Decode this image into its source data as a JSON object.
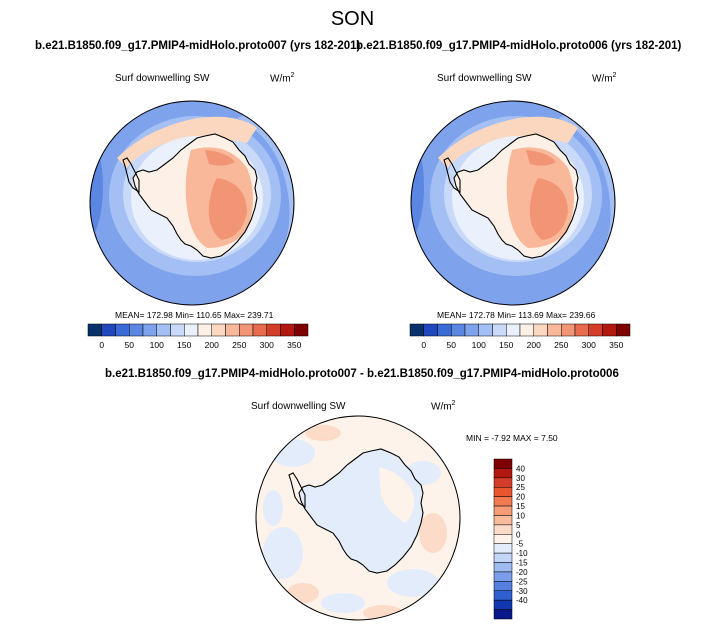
{
  "page": {
    "title": "SON"
  },
  "chart_data": [
    {
      "type": "heatmap",
      "title": "b.e21.B1850.f09_g17.PMIP4-midHolo.proto007 (yrs 182-201)",
      "variable": "Surf downwelling SW",
      "units_base": "W/m",
      "units_exp": "2",
      "projection": "south polar stereographic",
      "stats": {
        "mean": 172.98,
        "min": 110.65,
        "max": 239.71
      },
      "stats_text": "MEAN= 172.98   Min= 110.65   Max= 239.71",
      "colorbar": {
        "levels": [
          0,
          25,
          50,
          75,
          100,
          125,
          150,
          175,
          200,
          225,
          250,
          275,
          300,
          325,
          350
        ],
        "labels": [
          "0",
          "50",
          "100",
          "150",
          "200",
          "250",
          "300",
          "350"
        ],
        "colors": [
          "#08306b",
          "#1f48bf",
          "#3a6ad6",
          "#5b87e3",
          "#7ea2ec",
          "#a3bff3",
          "#c9d9f8",
          "#eaf1fc",
          "#fdf0e6",
          "#fcd7c0",
          "#f8b899",
          "#f29575",
          "#e76b4c",
          "#d43d29",
          "#b3180f",
          "#7f0000"
        ]
      }
    },
    {
      "type": "heatmap",
      "title": "b.e21.B1850.f09_g17.PMIP4-midHolo.proto006 (yrs 182-201)",
      "variable": "Surf downwelling SW",
      "units_base": "W/m",
      "units_exp": "2",
      "projection": "south polar stereographic",
      "stats": {
        "mean": 172.78,
        "min": 113.69,
        "max": 239.66
      },
      "stats_text": "MEAN= 172.78   Min= 113.69   Max= 239.66",
      "colorbar": {
        "levels": [
          0,
          25,
          50,
          75,
          100,
          125,
          150,
          175,
          200,
          225,
          250,
          275,
          300,
          325,
          350
        ],
        "labels": [
          "0",
          "50",
          "100",
          "150",
          "200",
          "250",
          "300",
          "350"
        ],
        "colors": [
          "#08306b",
          "#1f48bf",
          "#3a6ad6",
          "#5b87e3",
          "#7ea2ec",
          "#a3bff3",
          "#c9d9f8",
          "#eaf1fc",
          "#fdf0e6",
          "#fcd7c0",
          "#f8b899",
          "#f29575",
          "#e76b4c",
          "#d43d29",
          "#b3180f",
          "#7f0000"
        ]
      }
    },
    {
      "type": "heatmap",
      "title": "b.e21.B1850.f09_g17.PMIP4-midHolo.proto007 - b.e21.B1850.f09_g17.PMIP4-midHolo.proto006",
      "variable": "Surf downwelling SW",
      "units_base": "W/m",
      "units_exp": "2",
      "projection": "south polar stereographic",
      "stats": {
        "min": -7.92,
        "max": 7.5
      },
      "stats_text": "MIN =  -7.92 MAX =   7.50",
      "colorbar": {
        "orientation": "vertical",
        "labels": [
          "40",
          "30",
          "25",
          "20",
          "15",
          "10",
          "5",
          "0",
          "-5",
          "-10",
          "-15",
          "-20",
          "-25",
          "-30",
          "-40"
        ],
        "colors": [
          "#7f0000",
          "#b3180f",
          "#d43d29",
          "#e8552f",
          "#f07a52",
          "#f59c77",
          "#f8bb9e",
          "#fcdcc8",
          "#fdf3ea",
          "#e3ecfb",
          "#c4d6f6",
          "#9dbbf0",
          "#7a9eea",
          "#5580e0",
          "#2f5fcf",
          "#1138b0",
          "#08178a"
        ]
      }
    }
  ]
}
